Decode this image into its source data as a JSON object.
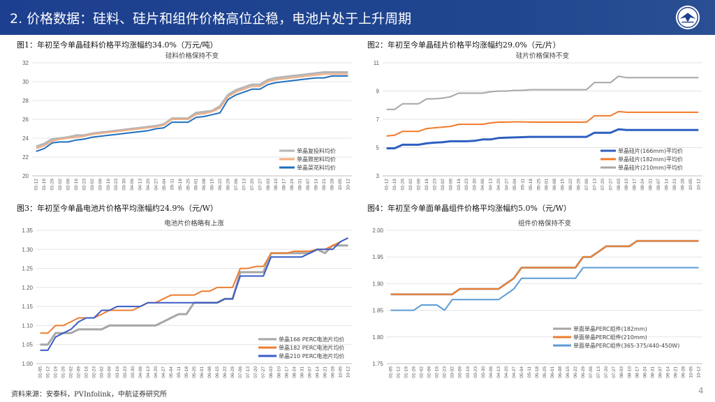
{
  "header": {
    "title": "2. 价格数据：硅料、硅片和组件价格高位企稳，电池片处于上升周期"
  },
  "footer": {
    "source": "资料来源：安泰科，PVInfolink，中航证券研究所",
    "page": "4"
  },
  "colors": {
    "header_bg": "#1d3f8f"
  },
  "panels": [
    {
      "label": "图1：年初至今单晶硅料价格平均涨幅约34.0%（万元/吨）"
    },
    {
      "label": "图2：年初至今单晶硅片价格平均涨幅约29.0%（元/片）"
    },
    {
      "label": "图3：年初至今单晶电池片价格平均涨幅约24.9%（元/W）"
    },
    {
      "label": "图4：年初至今单面单晶组件价格平均涨幅约5.0%（元/W）"
    }
  ],
  "chart_data": [
    {
      "type": "line",
      "title": "硅料价格保持不变",
      "ylim": [
        20,
        32
      ],
      "yticks": [
        20,
        22,
        24,
        26,
        28,
        30,
        32
      ],
      "categories": [
        "01-12",
        "01-19",
        "01-26",
        "02-02",
        "02-09",
        "02-16",
        "02-23",
        "03-02",
        "03-09",
        "03-16",
        "03-23",
        "03-30",
        "04-06",
        "04-13",
        "04-20",
        "04-27",
        "05-04",
        "05-11",
        "05-18",
        "05-25",
        "06-01",
        "06-08",
        "06-15",
        "06-22",
        "06-29",
        "07-06",
        "07-13",
        "07-20",
        "07-27",
        "08-03",
        "08-10",
        "08-17",
        "08-24",
        "08-31",
        "09-07",
        "09-14",
        "09-21",
        "09-28",
        "10-05",
        "10-12"
      ],
      "series": [
        {
          "name": "单晶复投料均价",
          "color": "#b5b5b5",
          "values": [
            23.1,
            23.4,
            23.9,
            24.0,
            24.1,
            24.3,
            24.3,
            24.5,
            24.6,
            24.7,
            24.8,
            24.9,
            25.0,
            25.1,
            25.2,
            25.3,
            25.5,
            26.1,
            26.1,
            26.1,
            26.7,
            26.8,
            26.9,
            27.4,
            28.6,
            29.1,
            29.4,
            29.7,
            29.7,
            30.2,
            30.4,
            30.5,
            30.6,
            30.7,
            30.8,
            30.9,
            31.0,
            31.0,
            31.0,
            31.0
          ]
        },
        {
          "name": "单晶致密料均价",
          "color": "#f4ad83",
          "values": [
            22.9,
            23.2,
            23.7,
            23.9,
            24.0,
            24.1,
            24.2,
            24.4,
            24.5,
            24.6,
            24.7,
            24.8,
            24.9,
            25.0,
            25.1,
            25.2,
            25.4,
            26.0,
            26.0,
            26.0,
            26.5,
            26.6,
            26.8,
            27.2,
            28.4,
            28.9,
            29.2,
            29.5,
            29.5,
            30.0,
            30.2,
            30.3,
            30.4,
            30.5,
            30.6,
            30.7,
            30.8,
            30.8,
            30.8,
            30.8
          ]
        },
        {
          "name": "单晶菜花料均价",
          "color": "#1f6fbf",
          "values": [
            22.6,
            22.9,
            23.5,
            23.6,
            23.6,
            23.8,
            23.9,
            24.1,
            24.2,
            24.3,
            24.4,
            24.5,
            24.6,
            24.7,
            24.8,
            25.0,
            25.1,
            25.7,
            25.7,
            25.7,
            26.2,
            26.3,
            26.5,
            26.7,
            28.1,
            28.6,
            28.9,
            29.2,
            29.2,
            29.7,
            29.9,
            30.0,
            30.1,
            30.2,
            30.3,
            30.4,
            30.4,
            30.6,
            30.6,
            30.6
          ]
        }
      ],
      "legend": "bottom-right"
    },
    {
      "type": "line",
      "title": "硅片价格保持不变",
      "ylim": [
        3,
        11
      ],
      "yticks": [
        3,
        5,
        7,
        9,
        11
      ],
      "categories": [
        "01-12",
        "01-19",
        "01-26",
        "02-02",
        "02-09",
        "02-16",
        "02-23",
        "03-02",
        "03-09",
        "03-16",
        "03-23",
        "03-30",
        "04-06",
        "04-13",
        "04-20",
        "04-27",
        "05-04",
        "05-11",
        "05-18",
        "05-25",
        "06-01",
        "06-08",
        "06-15",
        "06-22",
        "06-29",
        "07-06",
        "07-13",
        "07-20",
        "07-27",
        "08-03",
        "08-10",
        "08-17",
        "08-24",
        "08-31",
        "09-07",
        "09-14",
        "09-21",
        "09-28",
        "10-05",
        "10-12"
      ],
      "series": [
        {
          "name": "单晶硅片(166mm)平均价",
          "color": "#2e5fbf",
          "values": [
            4.95,
            4.95,
            5.2,
            5.2,
            5.2,
            5.3,
            5.35,
            5.38,
            5.45,
            5.45,
            5.45,
            5.48,
            5.58,
            5.58,
            5.68,
            5.7,
            5.72,
            5.74,
            5.76,
            5.76,
            5.76,
            5.76,
            5.76,
            5.76,
            5.76,
            5.76,
            6.05,
            6.05,
            6.05,
            6.3,
            6.25,
            6.25,
            6.25,
            6.25,
            6.25,
            6.25,
            6.25,
            6.25,
            6.25,
            6.25
          ]
        },
        {
          "name": "单晶硅片(182mm)平均价",
          "color": "#f07a2a",
          "values": [
            5.82,
            5.88,
            6.15,
            6.15,
            6.15,
            6.35,
            6.4,
            6.45,
            6.5,
            6.65,
            6.65,
            6.65,
            6.65,
            6.75,
            6.8,
            6.8,
            6.82,
            6.82,
            6.8,
            6.8,
            6.8,
            6.8,
            6.8,
            6.8,
            6.8,
            6.8,
            7.25,
            7.25,
            7.25,
            7.55,
            7.5,
            7.5,
            7.5,
            7.5,
            7.5,
            7.5,
            7.5,
            7.5,
            7.5,
            7.5
          ]
        },
        {
          "name": "单晶硅片(210mm)平均价",
          "color": "#a6a6a6",
          "values": [
            7.7,
            7.7,
            8.1,
            8.1,
            8.1,
            8.45,
            8.45,
            8.5,
            8.6,
            8.85,
            8.85,
            8.85,
            8.85,
            8.95,
            9.0,
            9.0,
            9.05,
            9.05,
            9.1,
            9.1,
            9.1,
            9.1,
            9.1,
            9.1,
            9.1,
            9.1,
            9.6,
            9.6,
            9.6,
            10.05,
            9.95,
            9.95,
            9.95,
            9.95,
            9.95,
            9.95,
            9.95,
            9.95,
            9.95,
            9.95
          ]
        }
      ],
      "legend": "bottom-right"
    },
    {
      "type": "line",
      "title": "电池片价格略有上涨",
      "ylim": [
        1.0,
        1.35
      ],
      "yticks": [
        1.0,
        1.05,
        1.1,
        1.15,
        1.2,
        1.25,
        1.3,
        1.35
      ],
      "categories": [
        "01-05",
        "01-12",
        "01-19",
        "01-26",
        "02-02",
        "02-09",
        "02-16",
        "02-23",
        "03-02",
        "03-09",
        "03-16",
        "03-23",
        "03-30",
        "04-06",
        "04-13",
        "04-20",
        "04-27",
        "05-04",
        "05-11",
        "05-18",
        "05-25",
        "06-01",
        "06-08",
        "06-15",
        "06-22",
        "06-29",
        "07-06",
        "07-13",
        "07-20",
        "07-27",
        "08-03",
        "08-10",
        "08-17",
        "08-24",
        "08-31",
        "09-07",
        "09-14",
        "09-21",
        "09-28",
        "10-05",
        "10-12"
      ],
      "series": [
        {
          "name": "单晶166 PERC电池片均价",
          "color": "#a6a6a6",
          "values": [
            1.05,
            1.05,
            1.08,
            1.08,
            1.08,
            1.09,
            1.09,
            1.09,
            1.09,
            1.1,
            1.1,
            1.1,
            1.1,
            1.1,
            1.1,
            1.1,
            1.11,
            1.12,
            1.13,
            1.13,
            1.16,
            1.16,
            1.16,
            1.16,
            1.17,
            1.17,
            1.24,
            1.24,
            1.24,
            1.24,
            1.29,
            1.29,
            1.29,
            1.29,
            1.29,
            1.29,
            1.3,
            1.29,
            1.31,
            1.31,
            1.31
          ]
        },
        {
          "name": "单晶182 PERC电池片均价",
          "color": "#ed7d31",
          "values": [
            1.08,
            1.08,
            1.1,
            1.1,
            1.11,
            1.12,
            1.12,
            1.12,
            1.13,
            1.14,
            1.14,
            1.14,
            1.14,
            1.15,
            1.16,
            1.16,
            1.17,
            1.18,
            1.18,
            1.18,
            1.18,
            1.19,
            1.19,
            1.2,
            1.2,
            1.2,
            1.25,
            1.25,
            1.255,
            1.255,
            1.29,
            1.29,
            1.29,
            1.295,
            1.295,
            1.295,
            1.3,
            1.3,
            1.31,
            1.32,
            1.33
          ]
        },
        {
          "name": "单晶210 PERC电池片均价",
          "color": "#3a5bc7",
          "values": [
            1.035,
            1.035,
            1.07,
            1.08,
            1.09,
            1.11,
            1.12,
            1.12,
            1.14,
            1.14,
            1.15,
            1.15,
            1.15,
            1.15,
            1.16,
            1.16,
            1.16,
            1.16,
            1.16,
            1.16,
            1.16,
            1.16,
            1.16,
            1.16,
            1.17,
            1.17,
            1.23,
            1.23,
            1.23,
            1.23,
            1.28,
            1.28,
            1.28,
            1.28,
            1.28,
            1.29,
            1.3,
            1.3,
            1.3,
            1.32,
            1.33
          ]
        }
      ],
      "legend": "bottom-right"
    },
    {
      "type": "line",
      "title": "组件价格保持不变",
      "ylim": [
        1.75,
        2.0
      ],
      "yticks": [
        1.75,
        1.8,
        1.85,
        1.9,
        1.95,
        2.0
      ],
      "categories": [
        "01-05",
        "01-12",
        "01-19",
        "01-26",
        "02-02",
        "02-09",
        "02-16",
        "02-23",
        "03-02",
        "03-09",
        "03-16",
        "03-23",
        "03-30",
        "04-06",
        "04-13",
        "04-20",
        "04-27",
        "05-04",
        "05-11",
        "05-18",
        "05-25",
        "06-01",
        "06-08",
        "06-15",
        "06-22",
        "06-29",
        "07-06",
        "07-13",
        "07-20",
        "07-27",
        "08-03",
        "08-10",
        "08-17",
        "08-24",
        "08-31",
        "09-07",
        "09-14",
        "09-21",
        "09-28",
        "10-05",
        "10-12"
      ],
      "series": [
        {
          "name": "单面单晶PERC组件(182mm)",
          "color": "#a6a6a6",
          "values": [
            1.88,
            1.88,
            1.88,
            1.88,
            1.88,
            1.88,
            1.88,
            1.88,
            1.88,
            1.89,
            1.89,
            1.89,
            1.89,
            1.89,
            1.89,
            1.9,
            1.91,
            1.93,
            1.93,
            1.93,
            1.93,
            1.93,
            1.93,
            1.93,
            1.93,
            1.95,
            1.95,
            1.96,
            1.97,
            1.97,
            1.97,
            1.97,
            1.98,
            1.98,
            1.98,
            1.98,
            1.98,
            1.98,
            1.98,
            1.98,
            1.98
          ]
        },
        {
          "name": "单面单晶PERC组件(210mm)",
          "color": "#ed7d31",
          "values": [
            1.88,
            1.88,
            1.88,
            1.88,
            1.88,
            1.88,
            1.88,
            1.88,
            1.88,
            1.89,
            1.89,
            1.89,
            1.89,
            1.89,
            1.89,
            1.9,
            1.91,
            1.93,
            1.93,
            1.93,
            1.93,
            1.93,
            1.93,
            1.93,
            1.93,
            1.95,
            1.95,
            1.96,
            1.97,
            1.97,
            1.97,
            1.97,
            1.98,
            1.98,
            1.98,
            1.98,
            1.98,
            1.98,
            1.98,
            1.98,
            1.98
          ]
        },
        {
          "name": "单面单晶PERC组件(365-375/440-450W)",
          "color": "#5b9bd5",
          "values": [
            1.85,
            1.85,
            1.85,
            1.85,
            1.86,
            1.86,
            1.86,
            1.85,
            1.87,
            1.87,
            1.87,
            1.87,
            1.87,
            1.87,
            1.87,
            1.88,
            1.89,
            1.91,
            1.91,
            1.91,
            1.91,
            1.91,
            1.91,
            1.91,
            1.91,
            1.93,
            1.93,
            1.93,
            1.93,
            1.93,
            1.93,
            1.93,
            1.93,
            1.93,
            1.93,
            1.93,
            1.93,
            1.93,
            1.93,
            1.93,
            1.93
          ]
        }
      ],
      "legend": "bottom-right"
    }
  ]
}
